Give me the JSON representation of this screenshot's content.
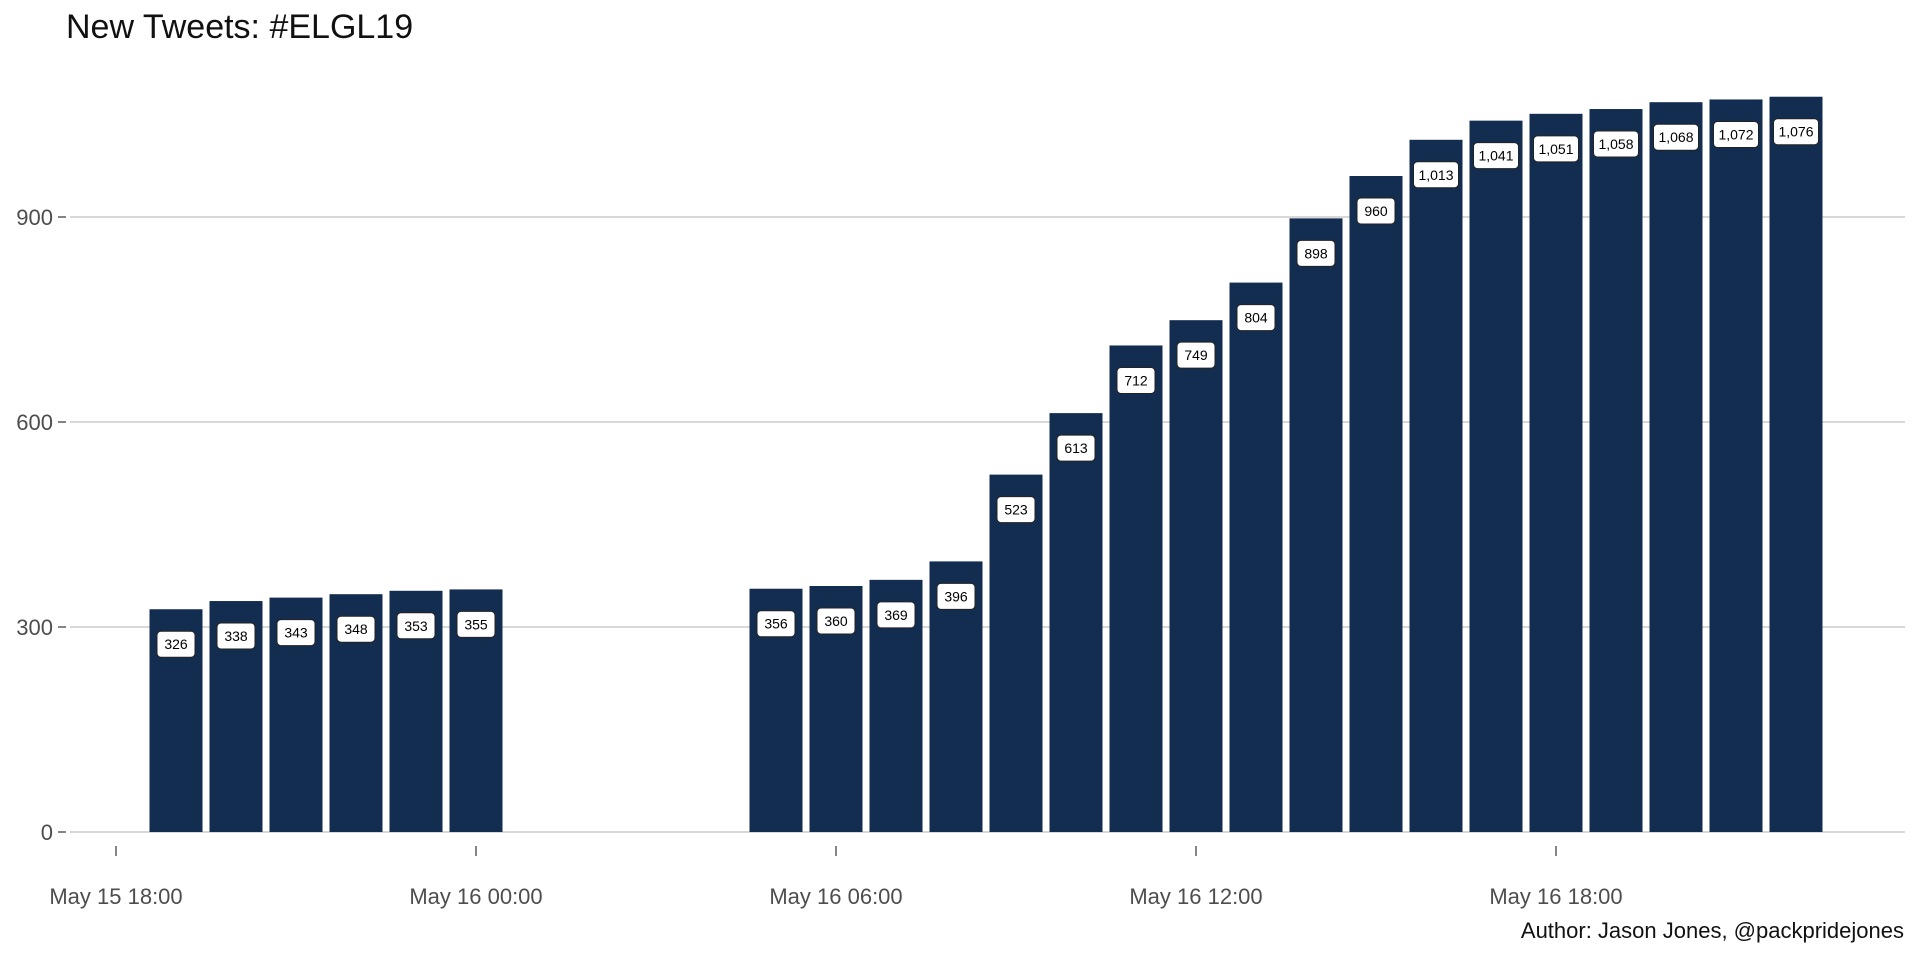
{
  "chart_data": {
    "type": "bar",
    "title": "New Tweets: #ELGL19",
    "caption": "Author: Jason Jones, @packpridejones",
    "xlabel": "",
    "ylabel": "",
    "x_axis": {
      "type": "datetime",
      "range": [
        "May 15 18:00",
        "May 16 22:00"
      ],
      "ticks": [
        {
          "value": "May 15 18:00",
          "label": "May 15 18:00"
        },
        {
          "value": "May 16 00:00",
          "label": "May 16 00:00"
        },
        {
          "value": "May 16 06:00",
          "label": "May 16 06:00"
        },
        {
          "value": "May 16 12:00",
          "label": "May 16 12:00"
        },
        {
          "value": "May 16 18:00",
          "label": "May 16 18:00"
        }
      ]
    },
    "y_axis": {
      "range": [
        0,
        1076
      ],
      "ticks": [
        0,
        300,
        600,
        900
      ],
      "tick_labels": [
        "0",
        "300",
        "600",
        "900"
      ]
    },
    "grid": "horizontal",
    "bar_color": "#132d50",
    "bars": [
      {
        "x": "May 15 19:00",
        "value": 326,
        "label": "326"
      },
      {
        "x": "May 15 20:00",
        "value": 338,
        "label": "338"
      },
      {
        "x": "May 15 21:00",
        "value": 343,
        "label": "343"
      },
      {
        "x": "May 15 22:00",
        "value": 348,
        "label": "348"
      },
      {
        "x": "May 15 23:00",
        "value": 353,
        "label": "353"
      },
      {
        "x": "May 16 00:00",
        "value": 355,
        "label": "355"
      },
      {
        "x": "May 16 05:00",
        "value": 356,
        "label": "356"
      },
      {
        "x": "May 16 06:00",
        "value": 360,
        "label": "360"
      },
      {
        "x": "May 16 07:00",
        "value": 369,
        "label": "369"
      },
      {
        "x": "May 16 08:00",
        "value": 396,
        "label": "396"
      },
      {
        "x": "May 16 09:00",
        "value": 523,
        "label": "523"
      },
      {
        "x": "May 16 10:00",
        "value": 613,
        "label": "613"
      },
      {
        "x": "May 16 11:00",
        "value": 712,
        "label": "712"
      },
      {
        "x": "May 16 12:00",
        "value": 749,
        "label": "749"
      },
      {
        "x": "May 16 13:00",
        "value": 804,
        "label": "804"
      },
      {
        "x": "May 16 14:00",
        "value": 898,
        "label": "898"
      },
      {
        "x": "May 16 15:00",
        "value": 960,
        "label": "960"
      },
      {
        "x": "May 16 16:00",
        "value": 1013,
        "label": "1,013"
      },
      {
        "x": "May 16 17:00",
        "value": 1041,
        "label": "1,041"
      },
      {
        "x": "May 16 18:00",
        "value": 1051,
        "label": "1,051"
      },
      {
        "x": "May 16 19:00",
        "value": 1058,
        "label": "1,058"
      },
      {
        "x": "May 16 20:00",
        "value": 1068,
        "label": "1,068"
      },
      {
        "x": "May 16 21:00",
        "value": 1072,
        "label": "1,072"
      },
      {
        "x": "May 16 22:00",
        "value": 1076,
        "label": "1,076"
      }
    ]
  }
}
